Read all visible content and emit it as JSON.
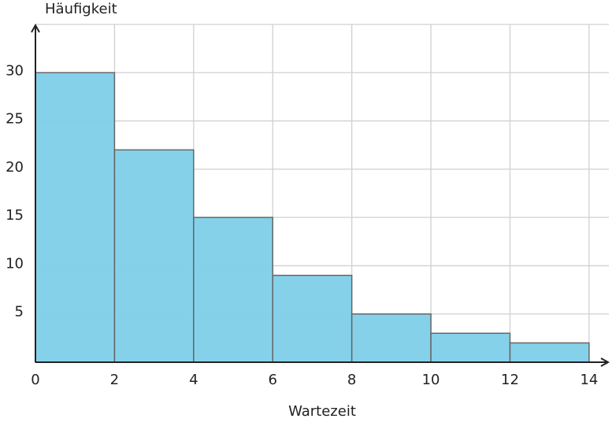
{
  "chart_data": {
    "type": "histogram",
    "x_label": "Wartezeit",
    "y_label": "Häufigkeit",
    "bins": [
      0,
      2,
      4,
      6,
      8,
      10,
      12,
      14
    ],
    "values": [
      30,
      22,
      15,
      9,
      5,
      3,
      2
    ],
    "color": "#7ecfe9",
    "xlim": [
      0,
      14.5
    ],
    "ylim": [
      0,
      35
    ],
    "xticks": [
      0,
      2,
      4,
      6,
      8,
      10,
      12,
      14
    ],
    "yticks": [
      5,
      10,
      15,
      20,
      25,
      30
    ],
    "grid": true
  }
}
